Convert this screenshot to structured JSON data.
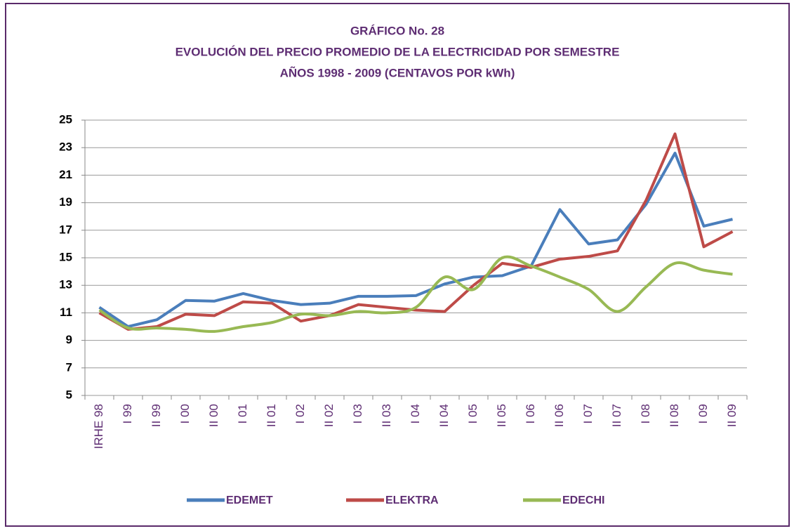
{
  "chart_data": {
    "type": "line",
    "title": [
      "GRÁFICO No.  28",
      "EVOLUCIÓN DEL PRECIO PROMEDIO DE LA ELECTRICIDAD POR SEMESTRE",
      "AÑOS  1998 - 2009   (CENTAVOS POR  kWh)"
    ],
    "categories": [
      "IRHE 98",
      "I 99",
      "II 99",
      "I 00",
      "II 00",
      "I 01",
      "II 01",
      "I 02",
      "II 02",
      "I 03",
      "II 03",
      "I 04",
      "II 04",
      "I 05",
      "II 05",
      "I 06",
      "II 06",
      "I 07",
      "II 07",
      "I 08",
      "II 08",
      "I 09",
      "II 09"
    ],
    "series": [
      {
        "name": "EDEMET",
        "color": "#4a7ebb",
        "smooth": false,
        "values": [
          11.4,
          10.0,
          10.5,
          11.9,
          11.85,
          12.4,
          11.9,
          11.6,
          11.7,
          12.2,
          12.2,
          12.25,
          13.1,
          13.6,
          13.7,
          14.4,
          18.5,
          16.0,
          16.3,
          18.9,
          22.6,
          17.3,
          17.8
        ]
      },
      {
        "name": "ELEKTRA",
        "color": "#be4b48",
        "smooth": false,
        "values": [
          11.0,
          9.8,
          10.0,
          10.9,
          10.8,
          11.8,
          11.7,
          10.4,
          10.8,
          11.6,
          11.4,
          11.2,
          11.1,
          13.0,
          14.6,
          14.3,
          14.9,
          15.1,
          15.5,
          19.2,
          24.0,
          15.8,
          16.9
        ]
      },
      {
        "name": "EDECHI",
        "color": "#98b954",
        "smooth": true,
        "values": [
          11.2,
          9.9,
          9.9,
          9.8,
          9.65,
          10.0,
          10.3,
          10.9,
          10.8,
          11.1,
          11.0,
          11.4,
          13.6,
          12.7,
          15.0,
          14.4,
          13.6,
          12.7,
          11.1,
          12.9,
          14.6,
          14.1,
          13.8
        ]
      }
    ],
    "ylim": [
      5,
      25
    ],
    "yticks": [
      5,
      7,
      9,
      11,
      13,
      15,
      17,
      19,
      21,
      23,
      25
    ],
    "grid": true,
    "legend": "bottom"
  }
}
